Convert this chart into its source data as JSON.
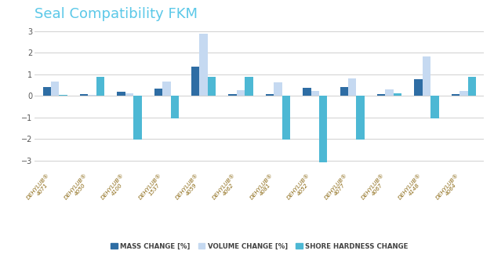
{
  "title": "Seal Compatibility FKM",
  "title_color": "#5bc8e8",
  "title_fontsize": 13,
  "categories": [
    "DEHYLUB®\n4071",
    "DEHYLUB®\n4050",
    "DEHYLUB®\n4100",
    "DEHYLUB®\n1537",
    "DEHYLUB®\n4059",
    "DEHYLUB®\n4062",
    "DEHYLUB®\n4081",
    "DEHYLUB®\n4052",
    "DEHYLUB®\n4077",
    "DEHYLUB®\n4067",
    "DEHYLUB®\n4148",
    "DEHYLUB®\n4064"
  ],
  "mass_change": [
    0.4,
    0.08,
    0.18,
    0.32,
    1.35,
    0.08,
    0.08,
    0.37,
    0.42,
    0.08,
    0.78,
    0.08
  ],
  "volume_change": [
    0.65,
    0.05,
    0.12,
    0.68,
    2.9,
    0.28,
    0.63,
    0.22,
    0.8,
    0.3,
    1.82,
    0.22
  ],
  "shore_change": [
    0.05,
    0.9,
    -2.05,
    -1.05,
    0.9,
    0.9,
    -2.05,
    -3.1,
    -2.05,
    0.1,
    -1.05,
    0.9
  ],
  "mass_color": "#2e6da4",
  "volume_color": "#c5d9f1",
  "shore_color": "#4db8d4",
  "ylim": [
    -3.5,
    3.3
  ],
  "yticks": [
    -3,
    -2,
    -1,
    0,
    1,
    2,
    3
  ],
  "grid_color": "#d0d0d0",
  "background_color": "#ffffff",
  "legend_labels": [
    "MASS CHANGE [%]",
    "VOLUME CHANGE [%]",
    "SHORE HARDNESS CHANGE"
  ],
  "bar_width": 0.22
}
